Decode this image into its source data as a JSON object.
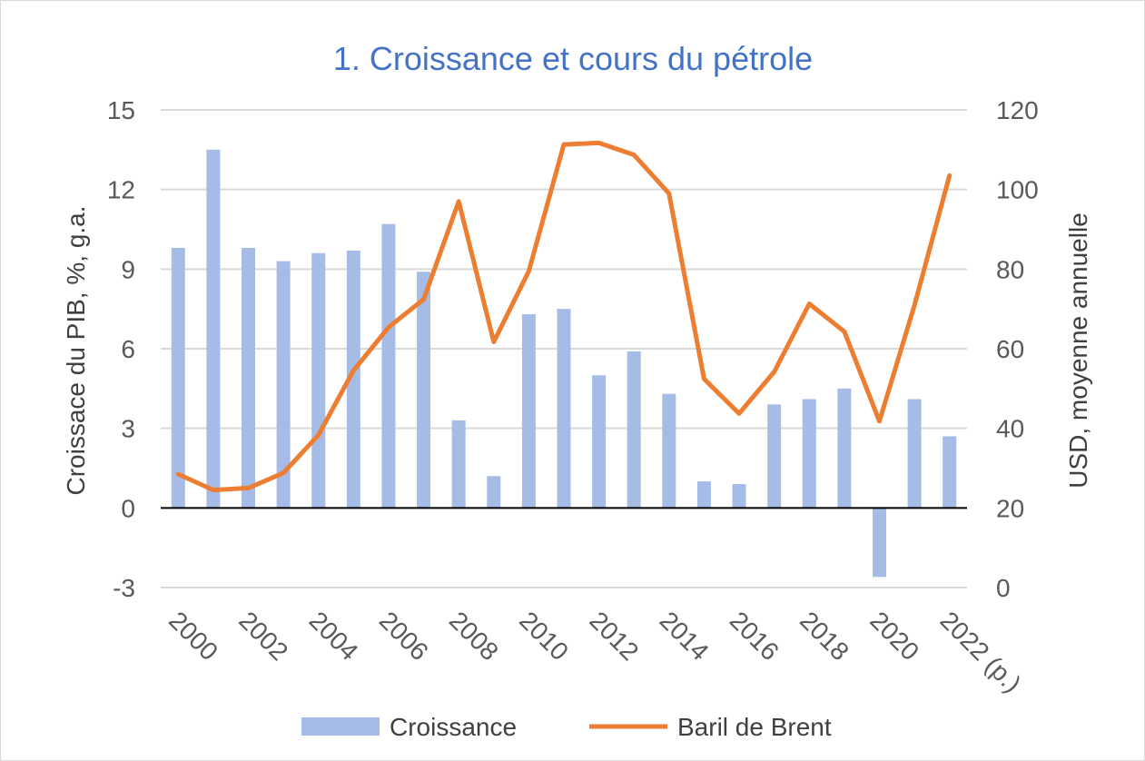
{
  "chart_data": {
    "type": "bar",
    "title": "1. Croissance et cours du pétrole",
    "categories": [
      "2000",
      "2001",
      "2002",
      "2003",
      "2004",
      "2005",
      "2006",
      "2007",
      "2008",
      "2009",
      "2010",
      "2011",
      "2012",
      "2013",
      "2014",
      "2015",
      "2016",
      "2017",
      "2018",
      "2019",
      "2020",
      "2021",
      "2022 (p.)"
    ],
    "x_tick_labels": [
      "2000",
      "",
      "2002",
      "",
      "2004",
      "",
      "2006",
      "",
      "2008",
      "",
      "2010",
      "",
      "2012",
      "",
      "2014",
      "",
      "2016",
      "",
      "2018",
      "",
      "2020",
      "",
      "2022 (p.)"
    ],
    "series": [
      {
        "name": "Croissance",
        "type": "bar",
        "axis": "left",
        "color": "#a5bde6",
        "values": [
          9.8,
          13.5,
          9.8,
          9.3,
          9.6,
          9.7,
          10.7,
          8.9,
          3.3,
          1.2,
          7.3,
          7.5,
          5.0,
          5.9,
          4.3,
          1.0,
          0.9,
          3.9,
          4.1,
          4.5,
          -2.6,
          4.1,
          2.7
        ]
      },
      {
        "name": "Baril de Brent",
        "type": "line",
        "axis": "right",
        "color": "#ed7d31",
        "values": [
          28.5,
          24.5,
          25.0,
          28.8,
          38.3,
          54.5,
          65.4,
          72.4,
          97.0,
          61.7,
          79.5,
          111.3,
          111.7,
          108.7,
          99.0,
          52.4,
          43.7,
          54.2,
          71.3,
          64.3,
          41.8,
          70.9,
          103.5
        ]
      }
    ],
    "ylabel": "Croissace du PIB, %, g.a.",
    "ylim": [
      -3,
      15
    ],
    "y_ticks": [
      "-3",
      "0",
      "3",
      "6",
      "9",
      "12",
      "15"
    ],
    "ylabel_right": "USD, moyenne annuelle",
    "ylim_right": [
      0,
      120
    ],
    "y_ticks_right": [
      "0",
      "20",
      "40",
      "60",
      "80",
      "100",
      "120"
    ],
    "grid": true,
    "legend_position": "bottom"
  }
}
